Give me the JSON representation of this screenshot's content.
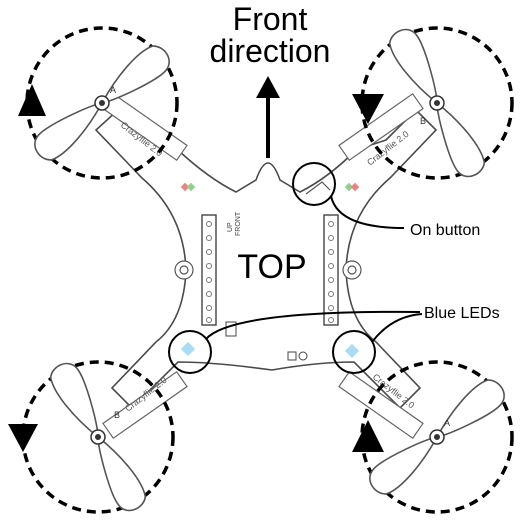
{
  "labels": {
    "front_line1": "Front",
    "front_line2": "direction",
    "top": "TOP",
    "on_button": "On button",
    "blue_leds": "Blue LEDs"
  },
  "board_text": {
    "arm_brand_1": "Crazyflie 2.0",
    "arm_brand_2": "Crazyflie 2.0",
    "arm_brand_3": "Crazyflie 2.0",
    "arm_brand_4": "Crazyflie 2.0",
    "front_mark": "FRONT",
    "up_mark": "UP",
    "prop_a1": "A",
    "prop_a2": "A",
    "prop_b1": "B",
    "prop_b2": "B"
  },
  "rotation": {
    "front_left": "clockwise",
    "front_right": "counter-clockwise",
    "rear_left": "counter-clockwise",
    "rear_right": "clockwise"
  },
  "colors": {
    "led_blue": "#a9dcf5",
    "led_red": "#f08080",
    "led_green": "#8fd18f",
    "outline": "#222222"
  }
}
